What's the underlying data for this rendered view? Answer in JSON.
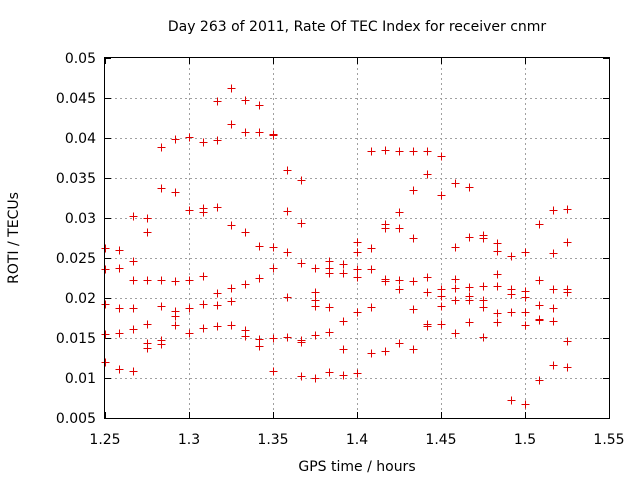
{
  "chart_data": {
    "type": "scatter",
    "title": "Day 263 of 2011, Rate Of TEC Index for receiver cnmr",
    "xlabel": "GPS time / hours",
    "ylabel": "ROTI / TECUs",
    "xlim": [
      1.25,
      1.55
    ],
    "ylim": [
      0.005,
      0.05
    ],
    "x_ticks": [
      1.25,
      1.3,
      1.35,
      1.4,
      1.45,
      1.5,
      1.55
    ],
    "x_tick_labels": [
      "1.25",
      "1.3",
      "1.35",
      "1.4",
      "1.45",
      "1.5",
      "1.55"
    ],
    "y_ticks": [
      0.005,
      0.01,
      0.015,
      0.02,
      0.025,
      0.03,
      0.035,
      0.04,
      0.045,
      0.05
    ],
    "y_tick_labels": [
      "0.005",
      "0.01",
      "0.015",
      "0.02",
      "0.025",
      "0.03",
      "0.035",
      "0.04",
      "0.045",
      "0.05"
    ],
    "grid": true,
    "marker": "plus",
    "marker_color": "#e00000",
    "series": [
      {
        "points": [
          [
            1.25,
            0.0263
          ],
          [
            1.25,
            0.0236
          ],
          [
            1.25,
            0.0193
          ],
          [
            1.25,
            0.0155
          ],
          [
            1.25,
            0.012
          ],
          [
            1.2583,
            0.026
          ],
          [
            1.2583,
            0.0237
          ],
          [
            1.2583,
            0.0188
          ],
          [
            1.2583,
            0.0156
          ],
          [
            1.2583,
            0.0111
          ],
          [
            1.2667,
            0.0302
          ],
          [
            1.2667,
            0.0246
          ],
          [
            1.2667,
            0.0222
          ],
          [
            1.2667,
            0.0187
          ],
          [
            1.2667,
            0.0161
          ],
          [
            1.2667,
            0.0109
          ],
          [
            1.275,
            0.03
          ],
          [
            1.275,
            0.0282
          ],
          [
            1.275,
            0.0222
          ],
          [
            1.275,
            0.0168
          ],
          [
            1.275,
            0.0144
          ],
          [
            1.275,
            0.0137
          ],
          [
            1.2833,
            0.0389
          ],
          [
            1.2833,
            0.0337
          ],
          [
            1.2833,
            0.0222
          ],
          [
            1.2833,
            0.019
          ],
          [
            1.2833,
            0.0147
          ],
          [
            1.2833,
            0.0142
          ],
          [
            1.2917,
            0.0399
          ],
          [
            1.2917,
            0.0333
          ],
          [
            1.2917,
            0.0221
          ],
          [
            1.2917,
            0.0184
          ],
          [
            1.2917,
            0.0178
          ],
          [
            1.2917,
            0.0166
          ],
          [
            1.3,
            0.0401
          ],
          [
            1.3,
            0.031
          ],
          [
            1.3,
            0.0223
          ],
          [
            1.3,
            0.0187
          ],
          [
            1.3,
            0.0156
          ],
          [
            1.3083,
            0.0395
          ],
          [
            1.3083,
            0.0313
          ],
          [
            1.3083,
            0.0308
          ],
          [
            1.3083,
            0.0228
          ],
          [
            1.3083,
            0.0192
          ],
          [
            1.3083,
            0.0163
          ],
          [
            1.3167,
            0.0446
          ],
          [
            1.3167,
            0.0398
          ],
          [
            1.3167,
            0.0314
          ],
          [
            1.3167,
            0.0206
          ],
          [
            1.3167,
            0.0191
          ],
          [
            1.3167,
            0.0165
          ],
          [
            1.325,
            0.0462
          ],
          [
            1.325,
            0.0417
          ],
          [
            1.325,
            0.0291
          ],
          [
            1.325,
            0.0213
          ],
          [
            1.325,
            0.0196
          ],
          [
            1.325,
            0.0166
          ],
          [
            1.3333,
            0.0448
          ],
          [
            1.3333,
            0.0407
          ],
          [
            1.3333,
            0.0283
          ],
          [
            1.3333,
            0.0217
          ],
          [
            1.3333,
            0.016
          ],
          [
            1.3333,
            0.0152
          ],
          [
            1.3417,
            0.0441
          ],
          [
            1.3417,
            0.0407
          ],
          [
            1.3417,
            0.0265
          ],
          [
            1.3417,
            0.0225
          ],
          [
            1.3417,
            0.0149
          ],
          [
            1.3417,
            0.014
          ],
          [
            1.35,
            0.0405
          ],
          [
            1.35,
            0.0404
          ],
          [
            1.35,
            0.0264
          ],
          [
            1.35,
            0.0238
          ],
          [
            1.35,
            0.015
          ],
          [
            1.35,
            0.0109
          ],
          [
            1.3583,
            0.036
          ],
          [
            1.3583,
            0.0309
          ],
          [
            1.3583,
            0.0257
          ],
          [
            1.3583,
            0.0201
          ],
          [
            1.3583,
            0.0151
          ],
          [
            1.3667,
            0.0347
          ],
          [
            1.3667,
            0.0294
          ],
          [
            1.3667,
            0.0244
          ],
          [
            1.3667,
            0.0147
          ],
          [
            1.3667,
            0.0145
          ],
          [
            1.3667,
            0.0102
          ],
          [
            1.375,
            0.0238
          ],
          [
            1.375,
            0.0207
          ],
          [
            1.375,
            0.0197
          ],
          [
            1.375,
            0.019
          ],
          [
            1.375,
            0.0154
          ],
          [
            1.375,
            0.01
          ],
          [
            1.3833,
            0.0246
          ],
          [
            1.3833,
            0.0238
          ],
          [
            1.3833,
            0.0231
          ],
          [
            1.3833,
            0.0189
          ],
          [
            1.3833,
            0.0157
          ],
          [
            1.3833,
            0.0108
          ],
          [
            1.3917,
            0.0242
          ],
          [
            1.3917,
            0.0231
          ],
          [
            1.3917,
            0.0171
          ],
          [
            1.3917,
            0.0136
          ],
          [
            1.3917,
            0.0104
          ],
          [
            1.4,
            0.027
          ],
          [
            1.4,
            0.0258
          ],
          [
            1.4,
            0.0236
          ],
          [
            1.4,
            0.0226
          ],
          [
            1.4,
            0.0183
          ],
          [
            1.4,
            0.0106
          ],
          [
            1.4083,
            0.0384
          ],
          [
            1.4083,
            0.0262
          ],
          [
            1.4083,
            0.0236
          ],
          [
            1.4083,
            0.0189
          ],
          [
            1.4083,
            0.0131
          ],
          [
            1.4167,
            0.0385
          ],
          [
            1.4167,
            0.0292
          ],
          [
            1.4167,
            0.0288
          ],
          [
            1.4167,
            0.0224
          ],
          [
            1.4167,
            0.0221
          ],
          [
            1.4167,
            0.0134
          ],
          [
            1.425,
            0.0384
          ],
          [
            1.425,
            0.0308
          ],
          [
            1.425,
            0.0287
          ],
          [
            1.425,
            0.0222
          ],
          [
            1.425,
            0.0211
          ],
          [
            1.425,
            0.0144
          ],
          [
            1.4333,
            0.0384
          ],
          [
            1.4333,
            0.0335
          ],
          [
            1.4333,
            0.0275
          ],
          [
            1.4333,
            0.0221
          ],
          [
            1.4333,
            0.0186
          ],
          [
            1.4333,
            0.0136
          ],
          [
            1.4417,
            0.0384
          ],
          [
            1.4417,
            0.0355
          ],
          [
            1.4417,
            0.0226
          ],
          [
            1.4417,
            0.0207
          ],
          [
            1.4417,
            0.0168
          ],
          [
            1.4417,
            0.0165
          ],
          [
            1.45,
            0.0378
          ],
          [
            1.45,
            0.0329
          ],
          [
            1.45,
            0.0211
          ],
          [
            1.45,
            0.0202
          ],
          [
            1.45,
            0.019
          ],
          [
            1.45,
            0.0168
          ],
          [
            1.4583,
            0.0344
          ],
          [
            1.4583,
            0.0264
          ],
          [
            1.4583,
            0.0224
          ],
          [
            1.4583,
            0.0213
          ],
          [
            1.4583,
            0.0198
          ],
          [
            1.4583,
            0.0156
          ],
          [
            1.4667,
            0.0339
          ],
          [
            1.4667,
            0.0276
          ],
          [
            1.4667,
            0.0214
          ],
          [
            1.4667,
            0.0202
          ],
          [
            1.4667,
            0.0197
          ],
          [
            1.4667,
            0.017
          ],
          [
            1.475,
            0.0279
          ],
          [
            1.475,
            0.0275
          ],
          [
            1.475,
            0.0215
          ],
          [
            1.475,
            0.0198
          ],
          [
            1.475,
            0.0189
          ],
          [
            1.475,
            0.0151
          ],
          [
            1.4833,
            0.0269
          ],
          [
            1.4833,
            0.0259
          ],
          [
            1.4833,
            0.023
          ],
          [
            1.4833,
            0.0215
          ],
          [
            1.4833,
            0.0181
          ],
          [
            1.4833,
            0.017
          ],
          [
            1.4917,
            0.0252
          ],
          [
            1.4917,
            0.0211
          ],
          [
            1.4917,
            0.0205
          ],
          [
            1.4917,
            0.0183
          ],
          [
            1.4917,
            0.0072
          ],
          [
            1.5,
            0.0257
          ],
          [
            1.5,
            0.0209
          ],
          [
            1.5,
            0.0201
          ],
          [
            1.5,
            0.0183
          ],
          [
            1.5,
            0.0166
          ],
          [
            1.5,
            0.0068
          ],
          [
            1.5083,
            0.0292
          ],
          [
            1.5083,
            0.0222
          ],
          [
            1.5083,
            0.0191
          ],
          [
            1.5083,
            0.0174
          ],
          [
            1.5083,
            0.0173
          ],
          [
            1.5083,
            0.0098
          ],
          [
            1.5167,
            0.031
          ],
          [
            1.5167,
            0.0256
          ],
          [
            1.5167,
            0.0211
          ],
          [
            1.5167,
            0.0188
          ],
          [
            1.5167,
            0.0171
          ],
          [
            1.5167,
            0.0116
          ],
          [
            1.525,
            0.0311
          ],
          [
            1.525,
            0.027
          ],
          [
            1.525,
            0.0211
          ],
          [
            1.525,
            0.0208
          ],
          [
            1.525,
            0.0146
          ],
          [
            1.525,
            0.0114
          ]
        ]
      }
    ]
  }
}
